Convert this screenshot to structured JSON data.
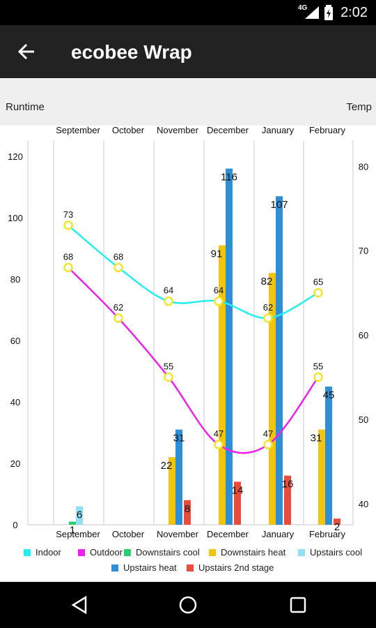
{
  "status_bar": {
    "time": "2:02",
    "network": "4G"
  },
  "app_bar": {
    "title": "ecobee Wrap"
  },
  "chart_data": {
    "type": "bar",
    "categories": [
      "September",
      "October",
      "November",
      "December",
      "January",
      "February"
    ],
    "left_axis": {
      "label": "Runtime",
      "ylim": [
        0,
        125
      ],
      "ticks": [
        0,
        20,
        40,
        60,
        80,
        100,
        120
      ]
    },
    "right_axis": {
      "label": "Temp",
      "ylim": [
        37.5,
        83
      ],
      "ticks": [
        40,
        50,
        60,
        70,
        80
      ]
    },
    "bar_series": [
      {
        "name": "Downstairs cool",
        "color": "#2ecc71",
        "values": [
          1,
          null,
          null,
          null,
          null,
          null
        ],
        "labels": [
          "1",
          "",
          "",
          "",
          "",
          ""
        ]
      },
      {
        "name": "Downstairs heat",
        "color": "#f1c40f",
        "values": [
          null,
          null,
          22,
          91,
          82,
          31
        ],
        "labels": [
          "",
          "",
          "22",
          "91",
          "82",
          "31"
        ]
      },
      {
        "name": "Upstairs cool",
        "color": "#8fe0f5",
        "values": [
          6,
          null,
          null,
          null,
          null,
          null
        ],
        "labels": [
          "6",
          "",
          "",
          "",
          "",
          ""
        ]
      },
      {
        "name": "Upstairs heat",
        "color": "#2e8fd6",
        "values": [
          null,
          null,
          31,
          116,
          107,
          45
        ],
        "labels": [
          "",
          "",
          "31",
          "116",
          "107",
          "45"
        ]
      },
      {
        "name": "Upstairs 2nd stage",
        "color": "#e74c3c",
        "values": [
          null,
          null,
          8,
          14,
          16,
          2
        ],
        "labels": [
          "",
          "",
          "8",
          "14",
          "16",
          "2"
        ]
      }
    ],
    "line_series": [
      {
        "name": "Indoor",
        "color": "#22f0f0",
        "values": [
          73,
          68,
          64,
          64,
          62,
          65
        ],
        "labels": [
          "73",
          "68",
          "64",
          "64",
          "62",
          "65"
        ]
      },
      {
        "name": "Outdoor",
        "color": "#ee22ee",
        "values": [
          68,
          62,
          55,
          47,
          47,
          55
        ],
        "labels": [
          "68",
          "62",
          "55",
          "47",
          "47",
          "55"
        ]
      }
    ],
    "legend": {
      "placement": "bottom",
      "items": [
        {
          "name": "Indoor",
          "color": "#22f0f0"
        },
        {
          "name": "Outdoor",
          "color": "#ee22ee"
        },
        {
          "name": "Downstairs cool",
          "color": "#2ecc71"
        },
        {
          "name": "Downstairs heat",
          "color": "#f1c40f"
        },
        {
          "name": "Upstairs cool",
          "color": "#8fe0f5"
        },
        {
          "name": "Upstairs heat",
          "color": "#2e8fd6"
        },
        {
          "name": "Upstairs 2nd stage",
          "color": "#e74c3c"
        }
      ]
    },
    "marker_fill": "#ffffff",
    "marker_stroke": "#f2e62b",
    "grid": true
  }
}
